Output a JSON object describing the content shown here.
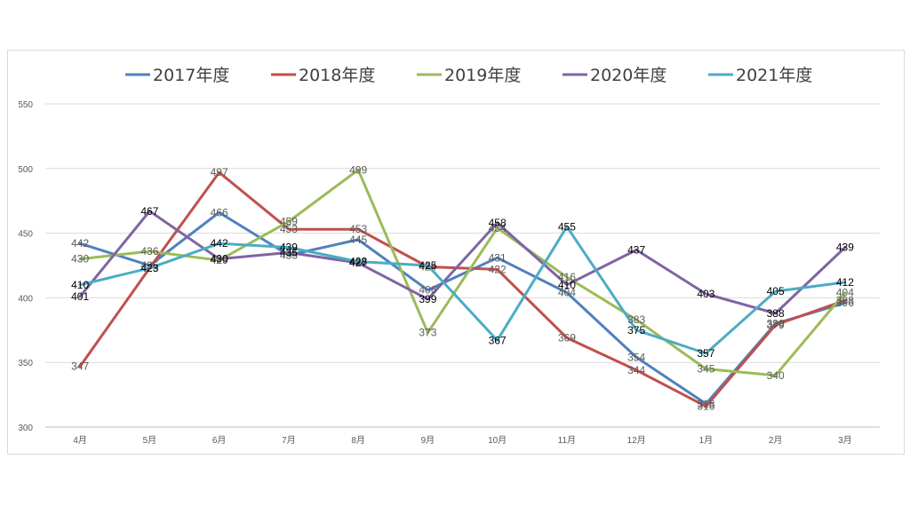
{
  "chart_data": {
    "type": "line",
    "title": "",
    "xlabel": "",
    "ylabel": "",
    "categories": [
      "4月",
      "5月",
      "6月",
      "7月",
      "8月",
      "9月",
      "10月",
      "11月",
      "12月",
      "1月",
      "2月",
      "3月"
    ],
    "ylim": [
      300,
      550
    ],
    "yticks": [
      300,
      350,
      400,
      450,
      500,
      550
    ],
    "grid": true,
    "legend": "top",
    "series": [
      {
        "name": "2017年度",
        "color": "#4f81bd",
        "values": [
          442,
          425,
          466,
          433,
          445,
          406,
          431,
          404,
          354,
          318,
          380,
          396
        ],
        "label_color": "#595959"
      },
      {
        "name": "2018年度",
        "color": "#c0504d",
        "values": [
          347,
          423,
          497,
          453,
          453,
          424,
          422,
          369,
          344,
          316,
          379,
          398
        ],
        "label_color": "#595959"
      },
      {
        "name": "2019年度",
        "color": "#9bbb59",
        "values": [
          430,
          436,
          429,
          459,
          499,
          373,
          454,
          416,
          383,
          345,
          340,
          404
        ],
        "label_color": "#595959"
      },
      {
        "name": "2020年度",
        "color": "#8064a2",
        "values": [
          401,
          467,
          430,
          435,
          427,
          399,
          458,
          410,
          437,
          403,
          388,
          439
        ],
        "label_color": "#000000"
      },
      {
        "name": "2021年度",
        "color": "#4bacc6",
        "values": [
          410,
          423,
          442,
          439,
          428,
          425,
          367,
          455,
          375,
          357,
          405,
          412
        ],
        "label_color": "#000000"
      }
    ]
  }
}
